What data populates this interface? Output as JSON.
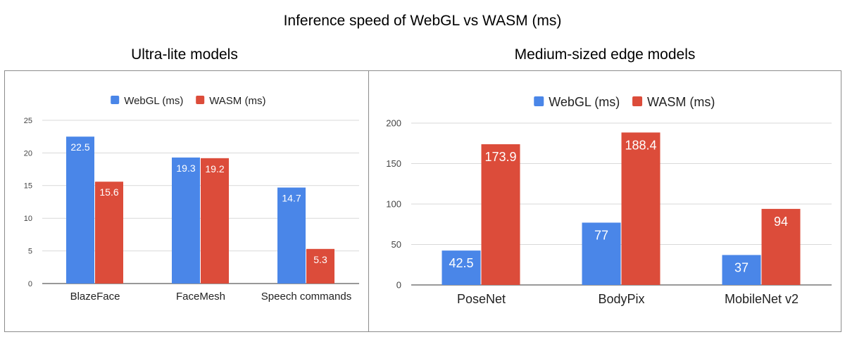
{
  "title": "Inference speed of WebGL vs WASM (ms)",
  "chart_data": [
    {
      "type": "bar",
      "title": "Ultra-lite models",
      "categories": [
        "BlazeFace",
        "FaceMesh",
        "Speech commands"
      ],
      "series": [
        {
          "name": "WebGL (ms)",
          "color": "#4a86e8",
          "values": [
            22.5,
            19.3,
            14.7
          ]
        },
        {
          "name": "WASM (ms)",
          "color": "#dc4c3a",
          "values": [
            15.6,
            19.2,
            5.3
          ]
        }
      ],
      "yticks": [
        0,
        5,
        10,
        15,
        20,
        25
      ],
      "ylim": [
        0,
        25
      ],
      "grid": true,
      "legend": "top"
    },
    {
      "type": "bar",
      "title": "Medium-sized edge models",
      "categories": [
        "PoseNet",
        "BodyPix",
        "MobileNet v2"
      ],
      "series": [
        {
          "name": "WebGL (ms)",
          "color": "#4a86e8",
          "values": [
            42.5,
            77,
            37
          ]
        },
        {
          "name": "WASM (ms)",
          "color": "#dc4c3a",
          "values": [
            173.9,
            188.4,
            94
          ]
        }
      ],
      "yticks": [
        0,
        50,
        100,
        150,
        200
      ],
      "ylim": [
        0,
        200
      ],
      "grid": true,
      "legend": "top"
    }
  ]
}
